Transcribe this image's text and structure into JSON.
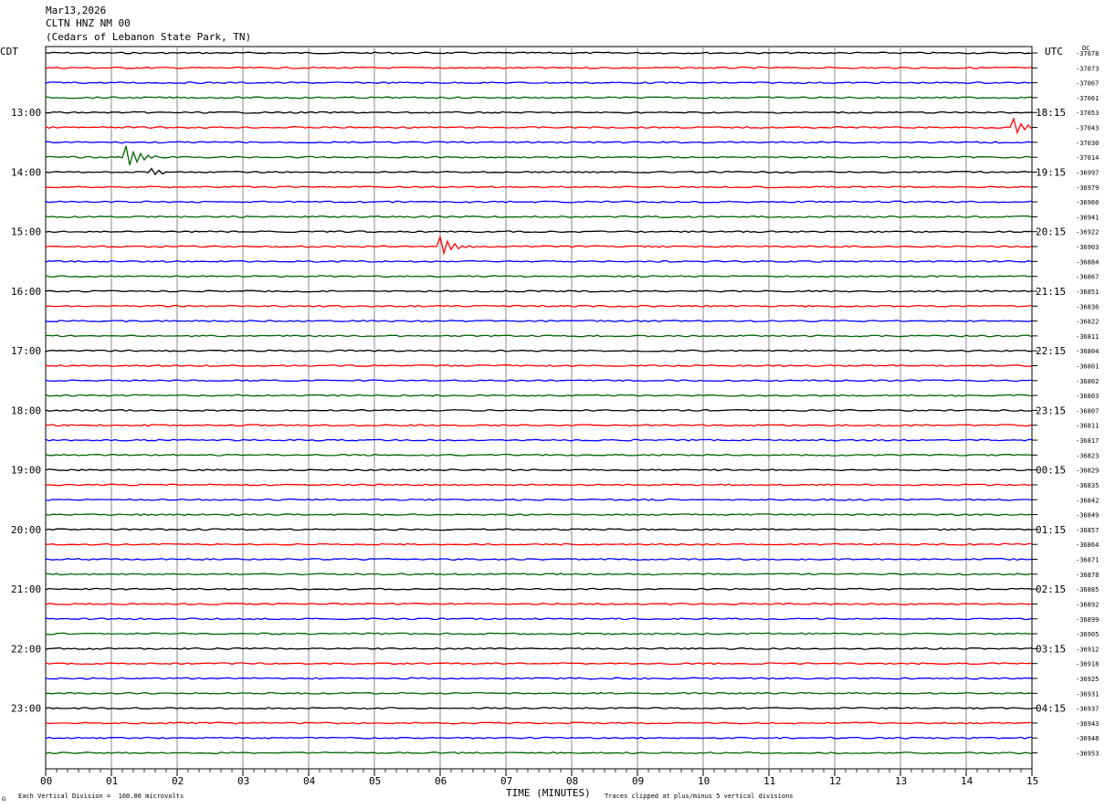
{
  "header": {
    "date": "Mar13,2026",
    "station": "CLTN HNZ NM 00",
    "location": "(Cedars of Lebanon State Park, TN)"
  },
  "left_zone": "CDT",
  "right_zone": "UTC",
  "dc_label": "DC",
  "footer": {
    "xlabel": "TIME (MINUTES)",
    "scale_note": "Each Vertical Division =  100.00 microvolts",
    "clip_note": "Traces clipped at plus/minus 5 vertical divisions"
  },
  "chart_data": {
    "type": "line",
    "title": "CLTN HNZ NM 00",
    "xlabel": "TIME (MINUTES)",
    "xlim": [
      0,
      15
    ],
    "x_ticks": [
      "00",
      "01",
      "02",
      "03",
      "04",
      "05",
      "06",
      "07",
      "08",
      "09",
      "10",
      "11",
      "12",
      "13",
      "14",
      "15"
    ],
    "left_hour_labels": [
      "13:00",
      "14:00",
      "15:00",
      "16:00",
      "17:00",
      "18:00",
      "19:00",
      "20:00",
      "21:00",
      "22:00",
      "23:00"
    ],
    "right_hour_labels": [
      "18:15",
      "19:15",
      "20:15",
      "21:15",
      "22:15",
      "23:15",
      "00:15",
      "01:15",
      "02:15",
      "03:15",
      "04:15"
    ],
    "dc_offsets": [
      -37078,
      -37073,
      -37067,
      -37061,
      -37053,
      -37043,
      -37030,
      -37014,
      -36997,
      -36979,
      -36960,
      -36941,
      -36922,
      -36903,
      -36884,
      -36867,
      -36851,
      -36836,
      -36822,
      -36811,
      -36804,
      -36801,
      -36802,
      -36803,
      -36807,
      -36811,
      -36817,
      -36823,
      -36829,
      -36835,
      -36842,
      -36849,
      -36857,
      -36864,
      -36871,
      -36878,
      -36885,
      -36892,
      -36899,
      -36905,
      -36912,
      -36918,
      -36925,
      -36931,
      -36937,
      -36943,
      -36948,
      -36953
    ],
    "trace_colors": [
      "#000000",
      "#ff0000",
      "#0000ff",
      "#006400"
    ],
    "events": [
      {
        "row": 5,
        "minute": 14.7,
        "amplitude": 10
      },
      {
        "row": 7,
        "minute": 1.2,
        "amplitude": 14
      },
      {
        "row": 8,
        "minute": 1.6,
        "amplitude": 4
      },
      {
        "row": 13,
        "minute": 6.0,
        "amplitude": 10
      }
    ],
    "grid": true
  }
}
